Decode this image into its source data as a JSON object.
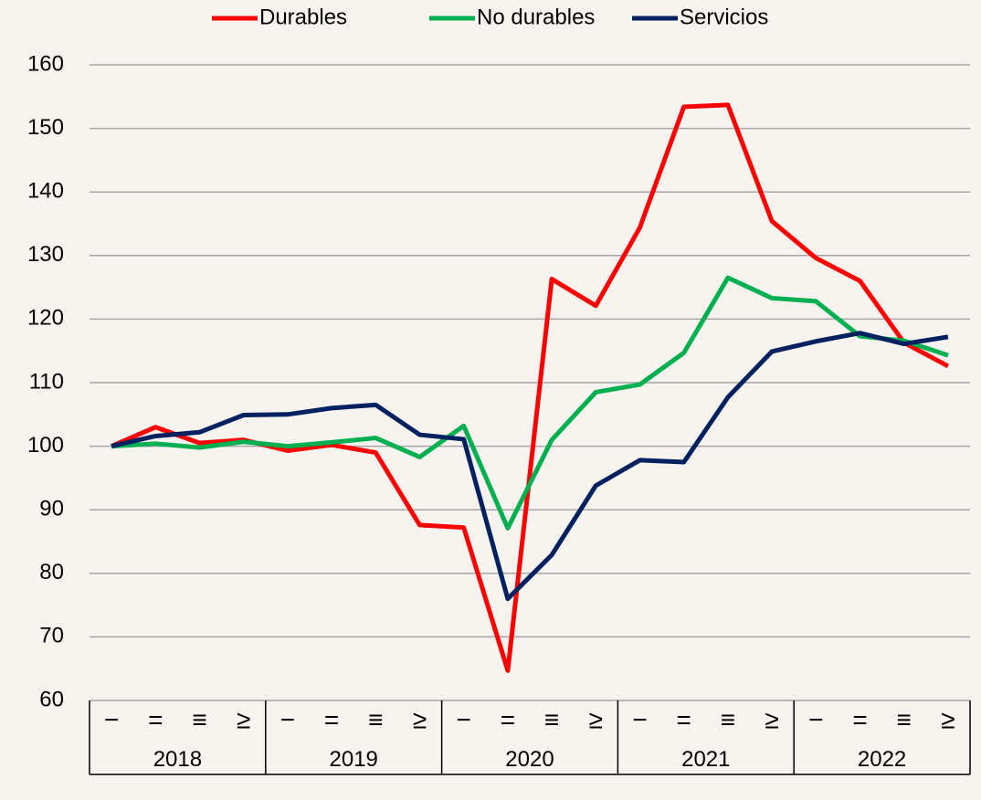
{
  "chart_data": {
    "type": "line",
    "categories": [
      "−",
      "=",
      "≡",
      "≥",
      "−",
      "=",
      "≡",
      "≥",
      "−",
      "=",
      "≡",
      "≥",
      "−",
      "=",
      "≡",
      "≥",
      "−",
      "=",
      "≡",
      "≥"
    ],
    "groups": [
      "2018",
      "2019",
      "2020",
      "2021",
      "2022"
    ],
    "series": [
      {
        "name": "Durables",
        "color": "#ff0000",
        "values": [
          100,
          103,
          100.5,
          101,
          99.3,
          100.2,
          99,
          87.6,
          87.2,
          64.7,
          126.3,
          122.1,
          134.4,
          153.4,
          153.7,
          135.4,
          129.6,
          126,
          116.3,
          112.6
        ]
      },
      {
        "name": "No durables",
        "color": "#00b050",
        "values": [
          100,
          100.4,
          99.8,
          100.7,
          100,
          100.6,
          101.3,
          98.3,
          103.2,
          87.1,
          101,
          108.5,
          109.7,
          114.7,
          126.5,
          123.3,
          122.8,
          117.3,
          116.6,
          114.3
        ]
      },
      {
        "name": "Servicios",
        "color": "#002060",
        "values": [
          100,
          101.6,
          102.2,
          104.9,
          105,
          106,
          106.5,
          101.8,
          101.1,
          76,
          82.9,
          93.8,
          97.8,
          97.5,
          107.7,
          114.9,
          116.5,
          117.8,
          116.1,
          117.2
        ]
      }
    ],
    "ylim": [
      60,
      160
    ],
    "yticks": [
      60,
      70,
      80,
      90,
      100,
      110,
      120,
      130,
      140,
      150,
      160
    ],
    "grid": true,
    "legend": "top"
  }
}
